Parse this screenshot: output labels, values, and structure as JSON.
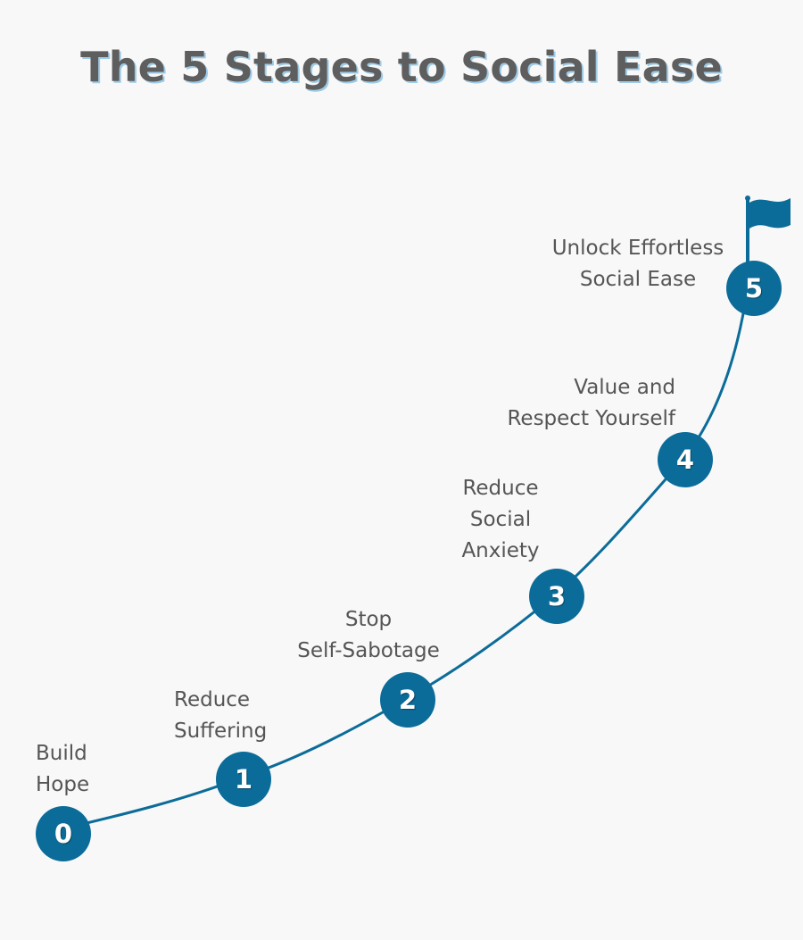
{
  "title": "The 5 Stages to Social Ease",
  "stages": [
    {
      "number": "0",
      "label": "Build\nHope"
    },
    {
      "number": "1",
      "label": "Reduce\nSuffering"
    },
    {
      "number": "2",
      "label": "Stop\nSelf-Sabotage"
    },
    {
      "number": "3",
      "label": "Reduce\nSocial\nAnxiety"
    },
    {
      "number": "4",
      "label": "Value and\nRespect Yourself"
    },
    {
      "number": "5",
      "label": "Unlock Effortless\nSocial Ease"
    }
  ],
  "goal_icon": "flag-icon",
  "colors": {
    "accent": "#0c6c99",
    "text": "#555555",
    "title": "#5e5e5e",
    "title_shadow": "#9ecbe6",
    "background": "#f8f8f8"
  }
}
